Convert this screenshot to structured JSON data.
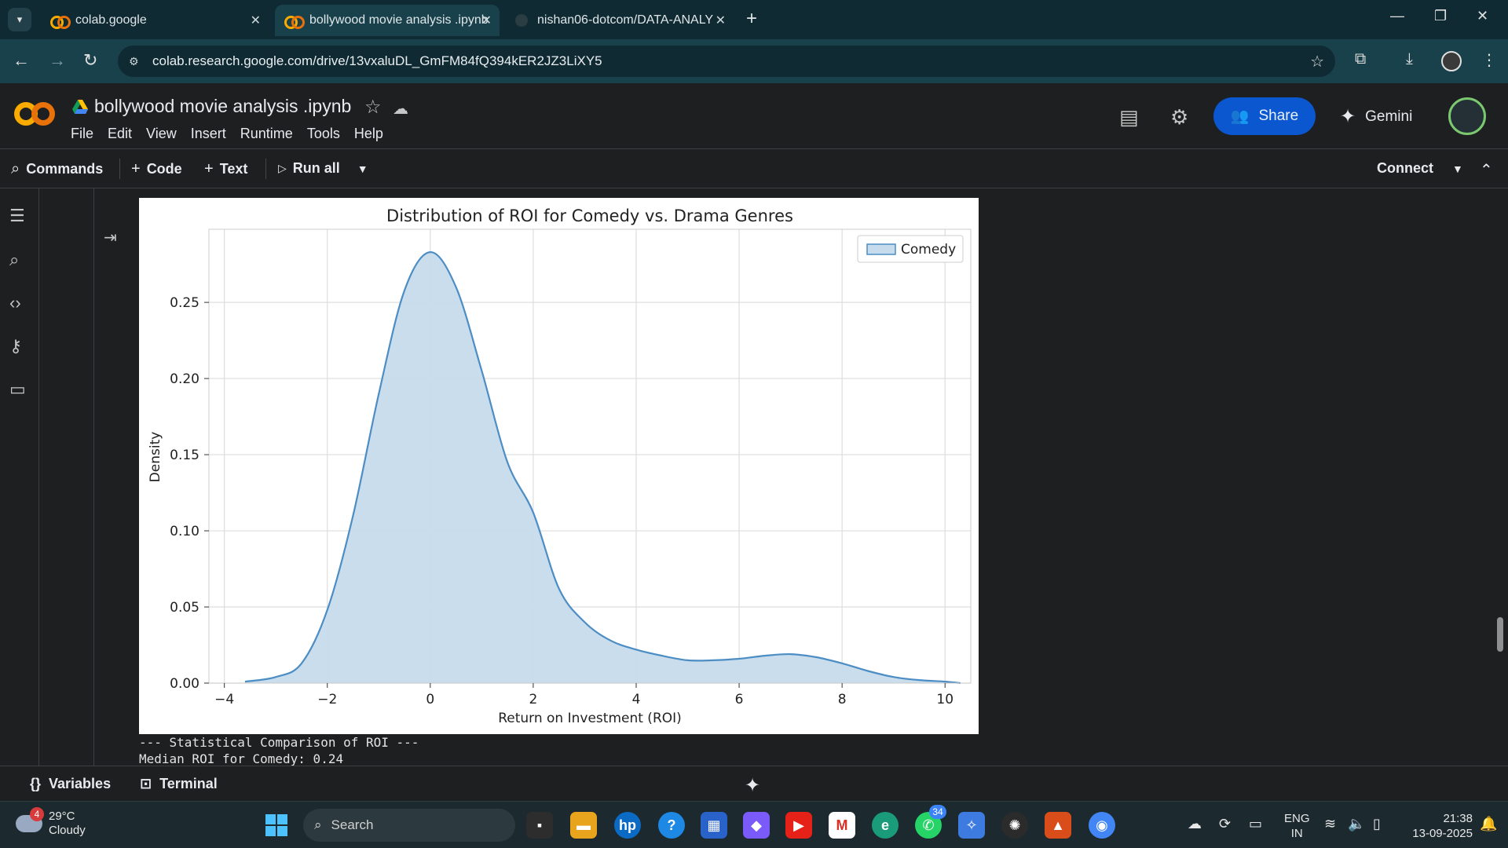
{
  "browser": {
    "tabs": [
      {
        "title": "colab.google"
      },
      {
        "title": "bollywood movie analysis .ipynb"
      },
      {
        "title": "nishan06-dotcom/DATA-ANALY"
      }
    ],
    "url": "colab.research.google.com/drive/13vxaluDL_GmFM84fQ394kER2JZ3LiXY5"
  },
  "colab": {
    "notebook_title": "bollywood movie analysis .ipynb",
    "menu": [
      "File",
      "Edit",
      "View",
      "Insert",
      "Runtime",
      "Tools",
      "Help"
    ],
    "share_label": "Share",
    "gemini_label": "Gemini",
    "toolbar": {
      "commands": "Commands",
      "code": "Code",
      "text": "Text",
      "run_all": "Run all",
      "connect": "Connect"
    },
    "status": {
      "variables": "Variables",
      "terminal": "Terminal"
    }
  },
  "output": {
    "lines": [
      "--- Statistical Comparison of ROI ---",
      "Median ROI for Comedy: 0.24"
    ]
  },
  "chart_data": {
    "type": "area",
    "title": "Distribution of ROI for Comedy vs. Drama Genres",
    "xlabel": "Return on Investment (ROI)",
    "ylabel": "Density",
    "xlim": [
      -4.3,
      10.5
    ],
    "ylim": [
      0,
      0.298
    ],
    "xticks": [
      -4,
      -2,
      0,
      2,
      4,
      6,
      8,
      10
    ],
    "yticks": [
      0.0,
      0.05,
      0.1,
      0.15,
      0.2,
      0.25
    ],
    "xtick_labels": [
      "−4",
      "−2",
      "0",
      "2",
      "4",
      "6",
      "8",
      "10"
    ],
    "ytick_labels": [
      "0.00",
      "0.05",
      "0.10",
      "0.15",
      "0.20",
      "0.25"
    ],
    "grid": true,
    "legend": {
      "position": "top-right"
    },
    "series": [
      {
        "name": "Comedy",
        "x": [
          -3.6,
          -3.0,
          -2.5,
          -2.0,
          -1.5,
          -1.0,
          -0.5,
          0.0,
          0.5,
          1.0,
          1.5,
          2.0,
          2.5,
          3.0,
          3.5,
          4.0,
          4.5,
          5.0,
          5.5,
          6.0,
          6.5,
          7.0,
          7.5,
          8.0,
          8.5,
          9.0,
          9.5,
          10.0,
          10.3
        ],
        "values": [
          0.001,
          0.004,
          0.013,
          0.048,
          0.11,
          0.19,
          0.258,
          0.283,
          0.26,
          0.205,
          0.145,
          0.112,
          0.062,
          0.04,
          0.028,
          0.022,
          0.018,
          0.015,
          0.015,
          0.016,
          0.018,
          0.019,
          0.017,
          0.013,
          0.008,
          0.004,
          0.002,
          0.001,
          0.0
        ],
        "color": "#4c8dc4",
        "fill": "#c6dbec"
      }
    ]
  },
  "taskbar": {
    "weather_temp": "29°C",
    "weather_desc": "Cloudy",
    "weather_badge": "4",
    "search_placeholder": "Search",
    "whatsapp_badge": "34",
    "lang_1": "ENG",
    "lang_2": "IN",
    "time": "21:38",
    "date": "13-09-2025"
  }
}
